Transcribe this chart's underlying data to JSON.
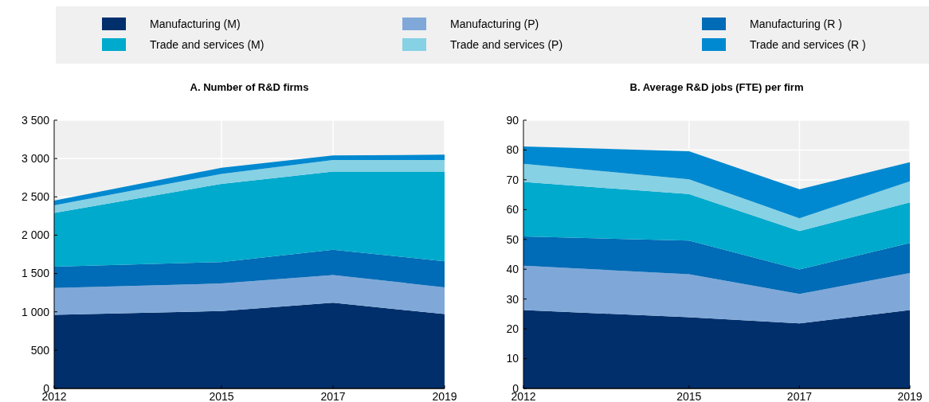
{
  "chart_data": [
    {
      "type": "area",
      "stacked": true,
      "title": "A. Number of R&D firms",
      "x": [
        2012,
        2015,
        2017,
        2019
      ],
      "xlim": [
        2012,
        2019
      ],
      "xticks": [
        2012,
        2015,
        2017,
        2019
      ],
      "ylim": [
        0,
        3500
      ],
      "yticks": [
        0,
        500,
        {
          "value": 1000,
          "label": "1 000"
        },
        {
          "value": 1500,
          "label": "1 500"
        },
        {
          "value": 2000,
          "label": "2 000"
        },
        {
          "value": 2500,
          "label": "2 500"
        },
        {
          "value": 3000,
          "label": "3 000"
        },
        {
          "value": 3500,
          "label": "3 500"
        }
      ],
      "grid": true,
      "legend": "top",
      "series": [
        {
          "name": "Manufacturing (M)",
          "color": "#002f6c",
          "values": [
            960,
            1010,
            1120,
            970
          ]
        },
        {
          "name": "Manufacturing (P)",
          "color": "#7fa8d9",
          "values": [
            350,
            360,
            360,
            350
          ]
        },
        {
          "name": "Manufacturing (R )",
          "color": "#006bb6",
          "values": [
            280,
            280,
            330,
            340
          ]
        },
        {
          "name": "Trade and services (M)",
          "color": "#00aacc",
          "values": [
            700,
            1020,
            1020,
            1170
          ]
        },
        {
          "name": "Trade and services (P)",
          "color": "#86d1e4",
          "values": [
            100,
            130,
            150,
            150
          ]
        },
        {
          "name": "Trade and services (R )",
          "color": "#0089d0",
          "values": [
            60,
            80,
            60,
            70
          ]
        }
      ]
    },
    {
      "type": "area",
      "stacked": true,
      "title": "B. Average R&D jobs (FTE) per firm",
      "x": [
        2012,
        2015,
        2017,
        2019
      ],
      "xlim": [
        2012,
        2019
      ],
      "xticks": [
        2012,
        2015,
        2017,
        2019
      ],
      "ylim": [
        0,
        90
      ],
      "yticks": [
        0,
        10,
        20,
        30,
        40,
        50,
        60,
        70,
        80,
        90
      ],
      "grid": true,
      "series": [
        {
          "color": "#002f6c",
          "values": [
            26.3,
            23.9,
            21.8,
            26.3
          ]
        },
        {
          "color": "#7fa8d9",
          "values": [
            14.9,
            14.4,
            9.9,
            12.4
          ]
        },
        {
          "color": "#006bb6",
          "values": [
            9.8,
            11.3,
            8.2,
            10.1
          ]
        },
        {
          "color": "#00aacc",
          "values": [
            18.3,
            15.6,
            12.9,
            13.6
          ]
        },
        {
          "color": "#86d1e4",
          "values": [
            6.1,
            5,
            4.3,
            7.1
          ]
        },
        {
          "color": "#0089d0",
          "values": [
            5.8,
            9.4,
            9.7,
            6.4
          ]
        }
      ]
    }
  ]
}
